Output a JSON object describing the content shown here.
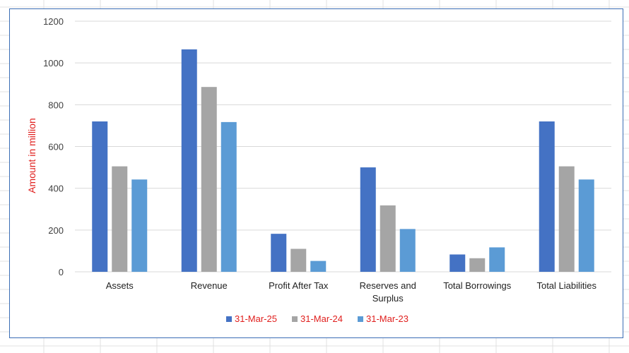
{
  "chart_data": {
    "type": "bar",
    "categories": [
      [
        "Assets"
      ],
      [
        "Revenue"
      ],
      [
        "Profit After Tax"
      ],
      [
        "Reserves and",
        "Surplus"
      ],
      [
        "Total Borrowings"
      ],
      [
        "Total Liabilities"
      ]
    ],
    "series": [
      {
        "name": "31-Mar-25",
        "color": "#4472c4",
        "values": [
          720,
          1065,
          182,
          500,
          83,
          720
        ]
      },
      {
        "name": "31-Mar-24",
        "color": "#a5a5a5",
        "values": [
          505,
          885,
          110,
          318,
          65,
          505
        ]
      },
      {
        "name": "31-Mar-23",
        "color": "#5b9bd5",
        "values": [
          442,
          717,
          52,
          205,
          117,
          442
        ]
      }
    ],
    "ylabel": "Amount in million",
    "ylim": [
      0,
      1200
    ],
    "yticks": [
      0,
      200,
      400,
      600,
      800,
      1000,
      1200
    ],
    "grid": true,
    "legend_position": "bottom",
    "gridline_color": "#d9d9d9",
    "axis_color": "#d9d9d9"
  }
}
